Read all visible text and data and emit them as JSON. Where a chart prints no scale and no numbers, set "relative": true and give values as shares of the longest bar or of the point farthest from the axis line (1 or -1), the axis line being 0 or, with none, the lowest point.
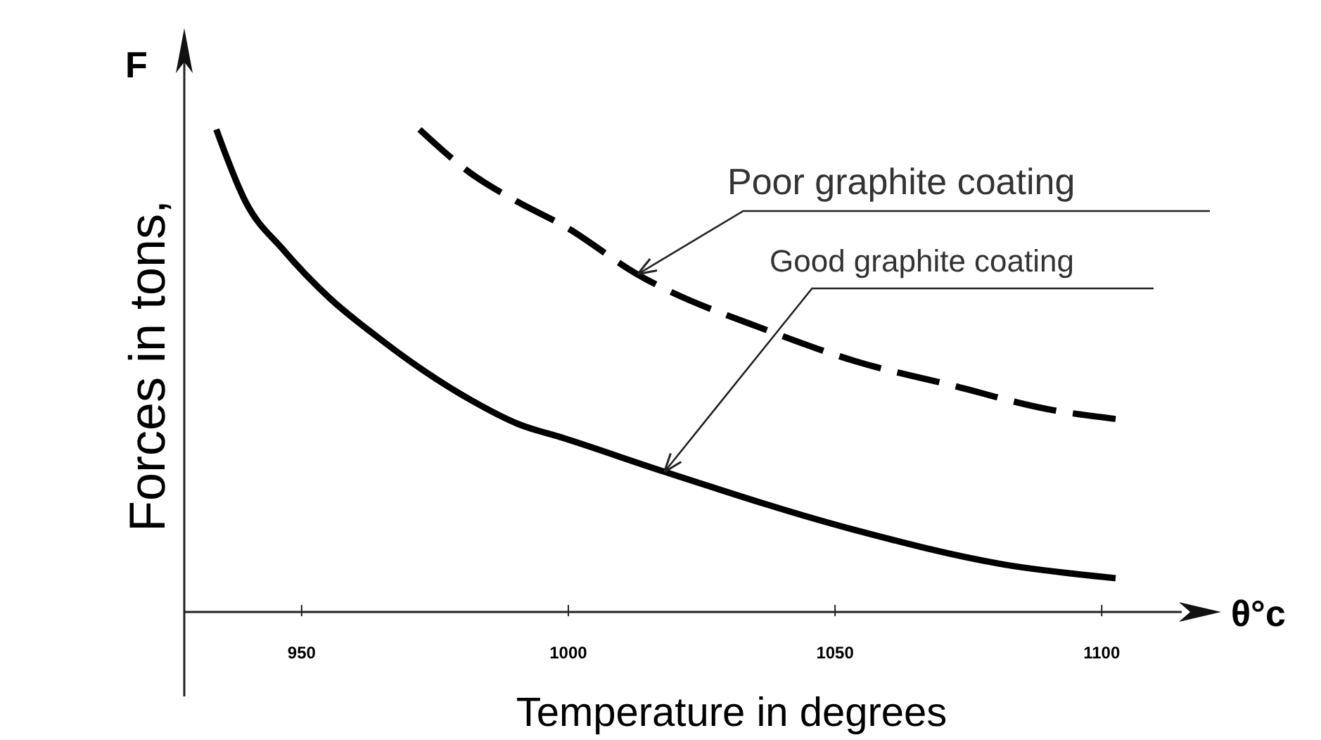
{
  "chart_data": {
    "type": "line",
    "relative": true,
    "xlabel": "Temperature in degrees",
    "ylabel": "Forces in tons,",
    "xlim": [
      928,
      1115
    ],
    "xticks": [
      950,
      1000,
      1050,
      1100
    ],
    "series": [
      {
        "color": "#000000",
        "line_style": "solid",
        "x": [
          934,
          939.5,
          946.6,
          955.3,
          964.2,
          972.9,
          981.6,
          990.5,
          999.2,
          1018.2,
          1053.7,
          1080.8,
          1102.6
        ],
        "values": [
          1.0,
          0.85,
          0.75,
          0.65,
          0.57,
          0.5,
          0.44,
          0.39,
          0.36,
          0.29,
          0.17,
          0.1,
          0.07
        ]
      },
      {
        "color": "#000000",
        "line_style": "dashed",
        "x": [
          972.1,
          981.6,
          990.5,
          999.2,
          1012.9,
          1038.2,
          1053.7,
          1071.8,
          1090.0,
          1102.6
        ],
        "values": [
          1.0,
          0.91,
          0.85,
          0.8,
          0.7,
          0.58,
          0.52,
          0.47,
          0.42,
          0.4
        ]
      }
    ],
    "annotations": [
      "F",
      "θ°c",
      {
        "text": "Poor graphite coating",
        "x": 1013,
        "y": 0.7
      },
      {
        "text": "Good graphite coating",
        "x": 1018,
        "y": 0.29
      }
    ]
  }
}
